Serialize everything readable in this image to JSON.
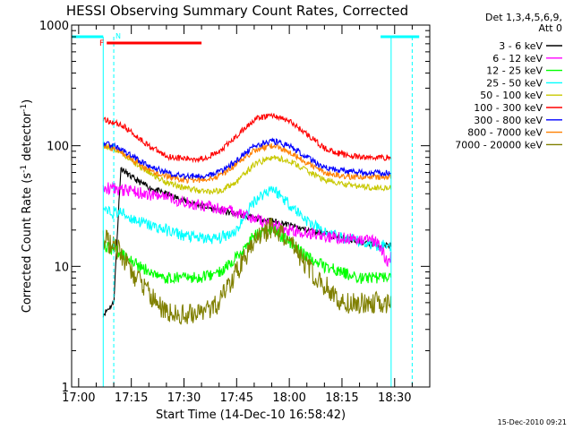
{
  "chart_data": {
    "type": "line",
    "title": "HESSI Observing Summary Count Rates, Corrected",
    "xlabel": "Start Time (14-Dec-10 16:58:42)",
    "ylabel_main": "Corrected Count Rate (s",
    "ylabel_sup1": "-1",
    "ylabel_mid": " detector",
    "ylabel_sup2": "-1",
    "ylabel_end": ")",
    "yscale": "log",
    "ylim": [
      1,
      1000
    ],
    "y_ticks": [
      {
        "value": 1,
        "label": "1"
      },
      {
        "value": 10,
        "label": "10"
      },
      {
        "value": 100,
        "label": "100"
      },
      {
        "value": 1000,
        "label": "1000"
      }
    ],
    "xlim_min": [
      -2,
      100
    ],
    "x_ticks": [
      {
        "min": 0,
        "label": "17:00"
      },
      {
        "min": 15,
        "label": "17:15"
      },
      {
        "min": 30,
        "label": "17:30"
      },
      {
        "min": 45,
        "label": "17:45"
      },
      {
        "min": 60,
        "label": "18:00"
      },
      {
        "min": 75,
        "label": "18:15"
      },
      {
        "min": 90,
        "label": "18:30"
      }
    ],
    "legend_header": [
      "Det 1,3,4,5,6,9,",
      "Att 0"
    ],
    "legend_position": "right",
    "timestamp": "15-Dec-2010 09:21",
    "observing_flags": [
      {
        "label": "F",
        "color": "#ff0000"
      },
      {
        "label": "N",
        "color": "#00ffff"
      }
    ],
    "flare_bar": {
      "start_min": 8,
      "end_min": 35,
      "color": "#ff0000"
    },
    "coverage_bars": [
      {
        "start_min": -2,
        "end_min": 7,
        "color": "#00ffff"
      },
      {
        "start_min": 86,
        "end_min": 97,
        "color": "#00ffff"
      }
    ],
    "night_lines_min": [
      10,
      95
    ],
    "data_window_min": [
      7,
      89
    ],
    "flare_peak_min": 51,
    "series": [
      {
        "name": "3 - 6 keV",
        "color": "#000000",
        "x": [
          7,
          10,
          12,
          15,
          20,
          25,
          30,
          35,
          40,
          45,
          50,
          55,
          60,
          65,
          70,
          75,
          80,
          85,
          89
        ],
        "values": [
          4,
          5,
          65,
          55,
          45,
          40,
          35,
          32,
          29,
          27,
          25,
          24,
          22,
          20,
          19,
          17,
          16,
          15,
          15
        ]
      },
      {
        "name": "6 - 12 keV",
        "color": "#ff00ff",
        "x": [
          7,
          15,
          25,
          35,
          45,
          50,
          55,
          60,
          65,
          70,
          75,
          80,
          85,
          88,
          89
        ],
        "values": [
          45,
          42,
          37,
          32,
          28,
          25,
          22,
          20,
          19,
          18,
          17,
          17,
          16,
          11,
          12
        ]
      },
      {
        "name": "12 - 25 keV",
        "color": "#00ff00",
        "x": [
          7,
          12,
          15,
          20,
          25,
          30,
          35,
          40,
          45,
          50,
          55,
          60,
          65,
          70,
          75,
          80,
          85,
          89
        ],
        "values": [
          15,
          13,
          11,
          9,
          8,
          8,
          8,
          9,
          12,
          18,
          20,
          16,
          12,
          10,
          9,
          8,
          8,
          8
        ]
      },
      {
        "name": "25 - 50 keV",
        "color": "#00ffff",
        "x": [
          7,
          12,
          15,
          20,
          25,
          30,
          35,
          40,
          45,
          50,
          55,
          60,
          65,
          70,
          75,
          80,
          85,
          89
        ],
        "values": [
          28,
          28,
          25,
          22,
          20,
          18,
          17,
          17,
          20,
          35,
          45,
          33,
          24,
          19,
          17,
          16,
          15,
          15
        ]
      },
      {
        "name": "50 - 100 keV",
        "color": "#c8c800",
        "x": [
          7,
          12,
          15,
          20,
          25,
          30,
          35,
          40,
          45,
          50,
          55,
          60,
          65,
          70,
          75,
          80,
          85,
          89
        ],
        "values": [
          100,
          90,
          75,
          60,
          50,
          45,
          42,
          42,
          50,
          70,
          80,
          75,
          62,
          52,
          48,
          46,
          45,
          45
        ]
      },
      {
        "name": "100 - 300 keV",
        "color": "#ff0000",
        "x": [
          7,
          12,
          15,
          20,
          25,
          30,
          35,
          40,
          45,
          50,
          55,
          60,
          65,
          70,
          75,
          80,
          85,
          89
        ],
        "values": [
          165,
          150,
          130,
          100,
          82,
          78,
          78,
          88,
          120,
          165,
          180,
          160,
          125,
          95,
          85,
          80,
          80,
          80
        ]
      },
      {
        "name": "300 - 800 keV",
        "color": "#0000ff",
        "x": [
          7,
          12,
          15,
          20,
          25,
          30,
          35,
          40,
          45,
          50,
          55,
          60,
          65,
          70,
          75,
          80,
          85,
          89
        ],
        "values": [
          105,
          95,
          82,
          68,
          60,
          56,
          56,
          60,
          75,
          100,
          110,
          100,
          80,
          66,
          62,
          60,
          60,
          60
        ]
      },
      {
        "name": "800 - 7000 keV",
        "color": "#ff8000",
        "x": [
          7,
          12,
          15,
          20,
          25,
          30,
          35,
          40,
          45,
          50,
          55,
          60,
          65,
          70,
          75,
          80,
          85,
          89
        ],
        "values": [
          100,
          90,
          78,
          62,
          56,
          52,
          52,
          56,
          70,
          92,
          100,
          90,
          72,
          60,
          56,
          55,
          55,
          55
        ]
      },
      {
        "name": "7000 - 20000 keV",
        "color": "#808000",
        "x": [
          7,
          12,
          15,
          20,
          25,
          30,
          35,
          40,
          45,
          50,
          55,
          60,
          65,
          70,
          75,
          80,
          85,
          89
        ],
        "values": [
          17,
          13,
          9,
          6,
          4,
          4,
          4,
          5,
          9,
          16,
          21,
          16,
          10,
          7,
          5,
          5,
          5,
          5
        ]
      }
    ]
  }
}
